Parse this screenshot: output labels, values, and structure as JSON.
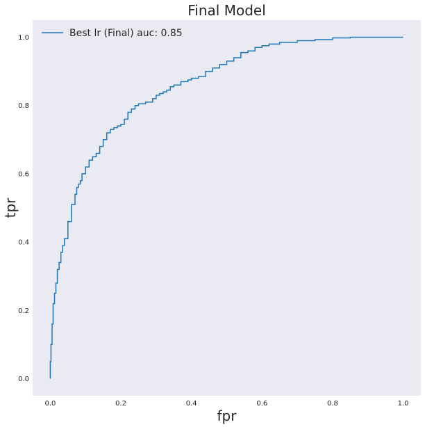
{
  "chart_data": {
    "type": "line",
    "title": "Final Model",
    "xlabel": "fpr",
    "ylabel": "tpr",
    "xlim": [
      -0.05,
      1.05
    ],
    "ylim": [
      -0.05,
      1.05
    ],
    "xticks": [
      "0.0",
      "0.2",
      "0.4",
      "0.6",
      "0.8",
      "1.0"
    ],
    "yticks": [
      "0.0",
      "0.2",
      "0.4",
      "0.6",
      "0.8",
      "1.0"
    ],
    "grid": false,
    "legend_position": "top-left",
    "background_color": "#eaeaf2",
    "series": [
      {
        "name": "Best lr (Final) auc: 0.85",
        "color": "#1f77b4",
        "x": [
          0.0,
          0.002,
          0.005,
          0.008,
          0.012,
          0.016,
          0.02,
          0.025,
          0.03,
          0.035,
          0.04,
          0.05,
          0.06,
          0.07,
          0.075,
          0.08,
          0.085,
          0.09,
          0.1,
          0.11,
          0.12,
          0.13,
          0.14,
          0.15,
          0.16,
          0.17,
          0.18,
          0.19,
          0.2,
          0.21,
          0.22,
          0.23,
          0.24,
          0.25,
          0.27,
          0.29,
          0.3,
          0.31,
          0.32,
          0.33,
          0.34,
          0.35,
          0.37,
          0.39,
          0.4,
          0.42,
          0.44,
          0.46,
          0.48,
          0.5,
          0.52,
          0.54,
          0.56,
          0.58,
          0.6,
          0.62,
          0.65,
          0.7,
          0.75,
          0.8,
          0.85,
          0.9,
          1.0
        ],
        "y": [
          0.0,
          0.05,
          0.1,
          0.16,
          0.22,
          0.25,
          0.28,
          0.32,
          0.34,
          0.37,
          0.39,
          0.41,
          0.46,
          0.51,
          0.54,
          0.56,
          0.57,
          0.58,
          0.6,
          0.62,
          0.64,
          0.65,
          0.66,
          0.68,
          0.7,
          0.72,
          0.73,
          0.735,
          0.74,
          0.745,
          0.76,
          0.78,
          0.79,
          0.8,
          0.805,
          0.81,
          0.82,
          0.83,
          0.835,
          0.84,
          0.845,
          0.855,
          0.86,
          0.87,
          0.875,
          0.88,
          0.885,
          0.9,
          0.91,
          0.92,
          0.93,
          0.94,
          0.955,
          0.96,
          0.97,
          0.975,
          0.98,
          0.985,
          0.99,
          0.993,
          0.998,
          1.0,
          1.0
        ]
      }
    ]
  }
}
